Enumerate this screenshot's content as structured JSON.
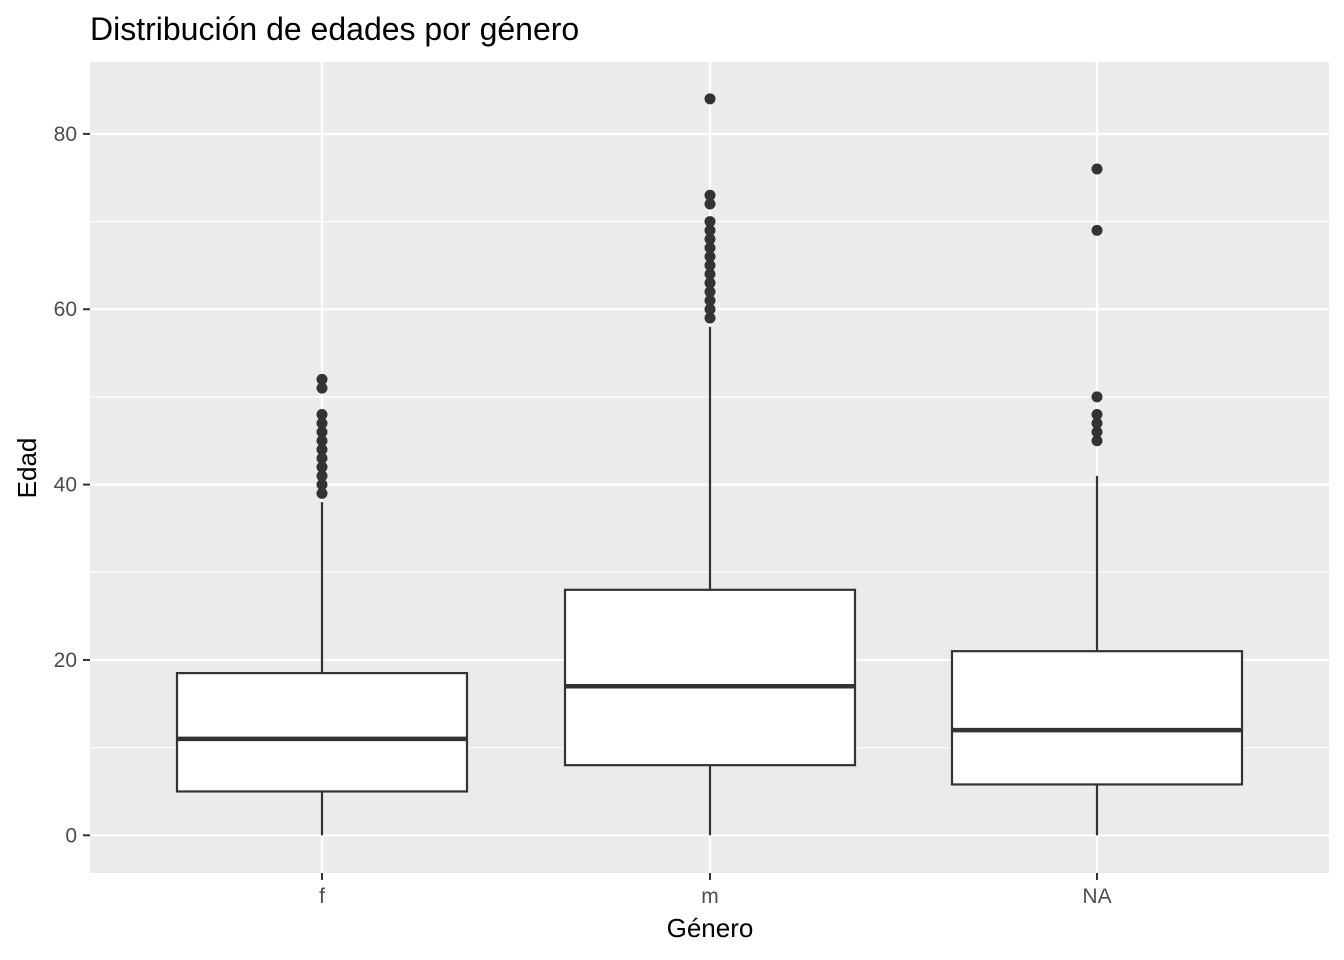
{
  "chart_data": {
    "type": "boxplot",
    "title": "Distribución de edades por género",
    "xlabel": "Género",
    "ylabel": "Edad",
    "categories": [
      "f",
      "m",
      "NA"
    ],
    "ylim": [
      -4.3,
      88.2
    ],
    "y_major_ticks": [
      0,
      20,
      40,
      60,
      80
    ],
    "y_tick_labels": [
      "0",
      "20",
      "40",
      "60",
      "80"
    ],
    "y_minor_ticks": [
      10,
      30,
      50,
      70
    ],
    "grid": true,
    "legend": "none",
    "boxes": [
      {
        "category": "f",
        "whisker_low": 0,
        "q1": 5,
        "median": 11,
        "q3": 18.5,
        "whisker_high": 38,
        "outliers": [
          39,
          40,
          41,
          42,
          43,
          44,
          45,
          46,
          47,
          48,
          51,
          52
        ]
      },
      {
        "category": "m",
        "whisker_low": 0,
        "q1": 8,
        "median": 17,
        "q3": 28,
        "whisker_high": 58,
        "outliers": [
          59,
          60,
          61,
          62,
          63,
          64,
          65,
          66,
          67,
          68,
          69,
          70,
          72,
          73,
          84
        ]
      },
      {
        "category": "NA",
        "whisker_low": 0,
        "q1": 5.8,
        "median": 12,
        "q3": 21,
        "whisker_high": 41,
        "outliers": [
          45,
          46,
          47,
          48,
          50,
          69,
          76
        ]
      }
    ],
    "colors": {
      "panel": "#ebebeb",
      "grid": "#ffffff",
      "box_fill": "#ffffff",
      "box_line": "#333333",
      "outlier": "#333333",
      "tick_label": "#4d4d4d",
      "tick_mark": "#333333"
    }
  }
}
